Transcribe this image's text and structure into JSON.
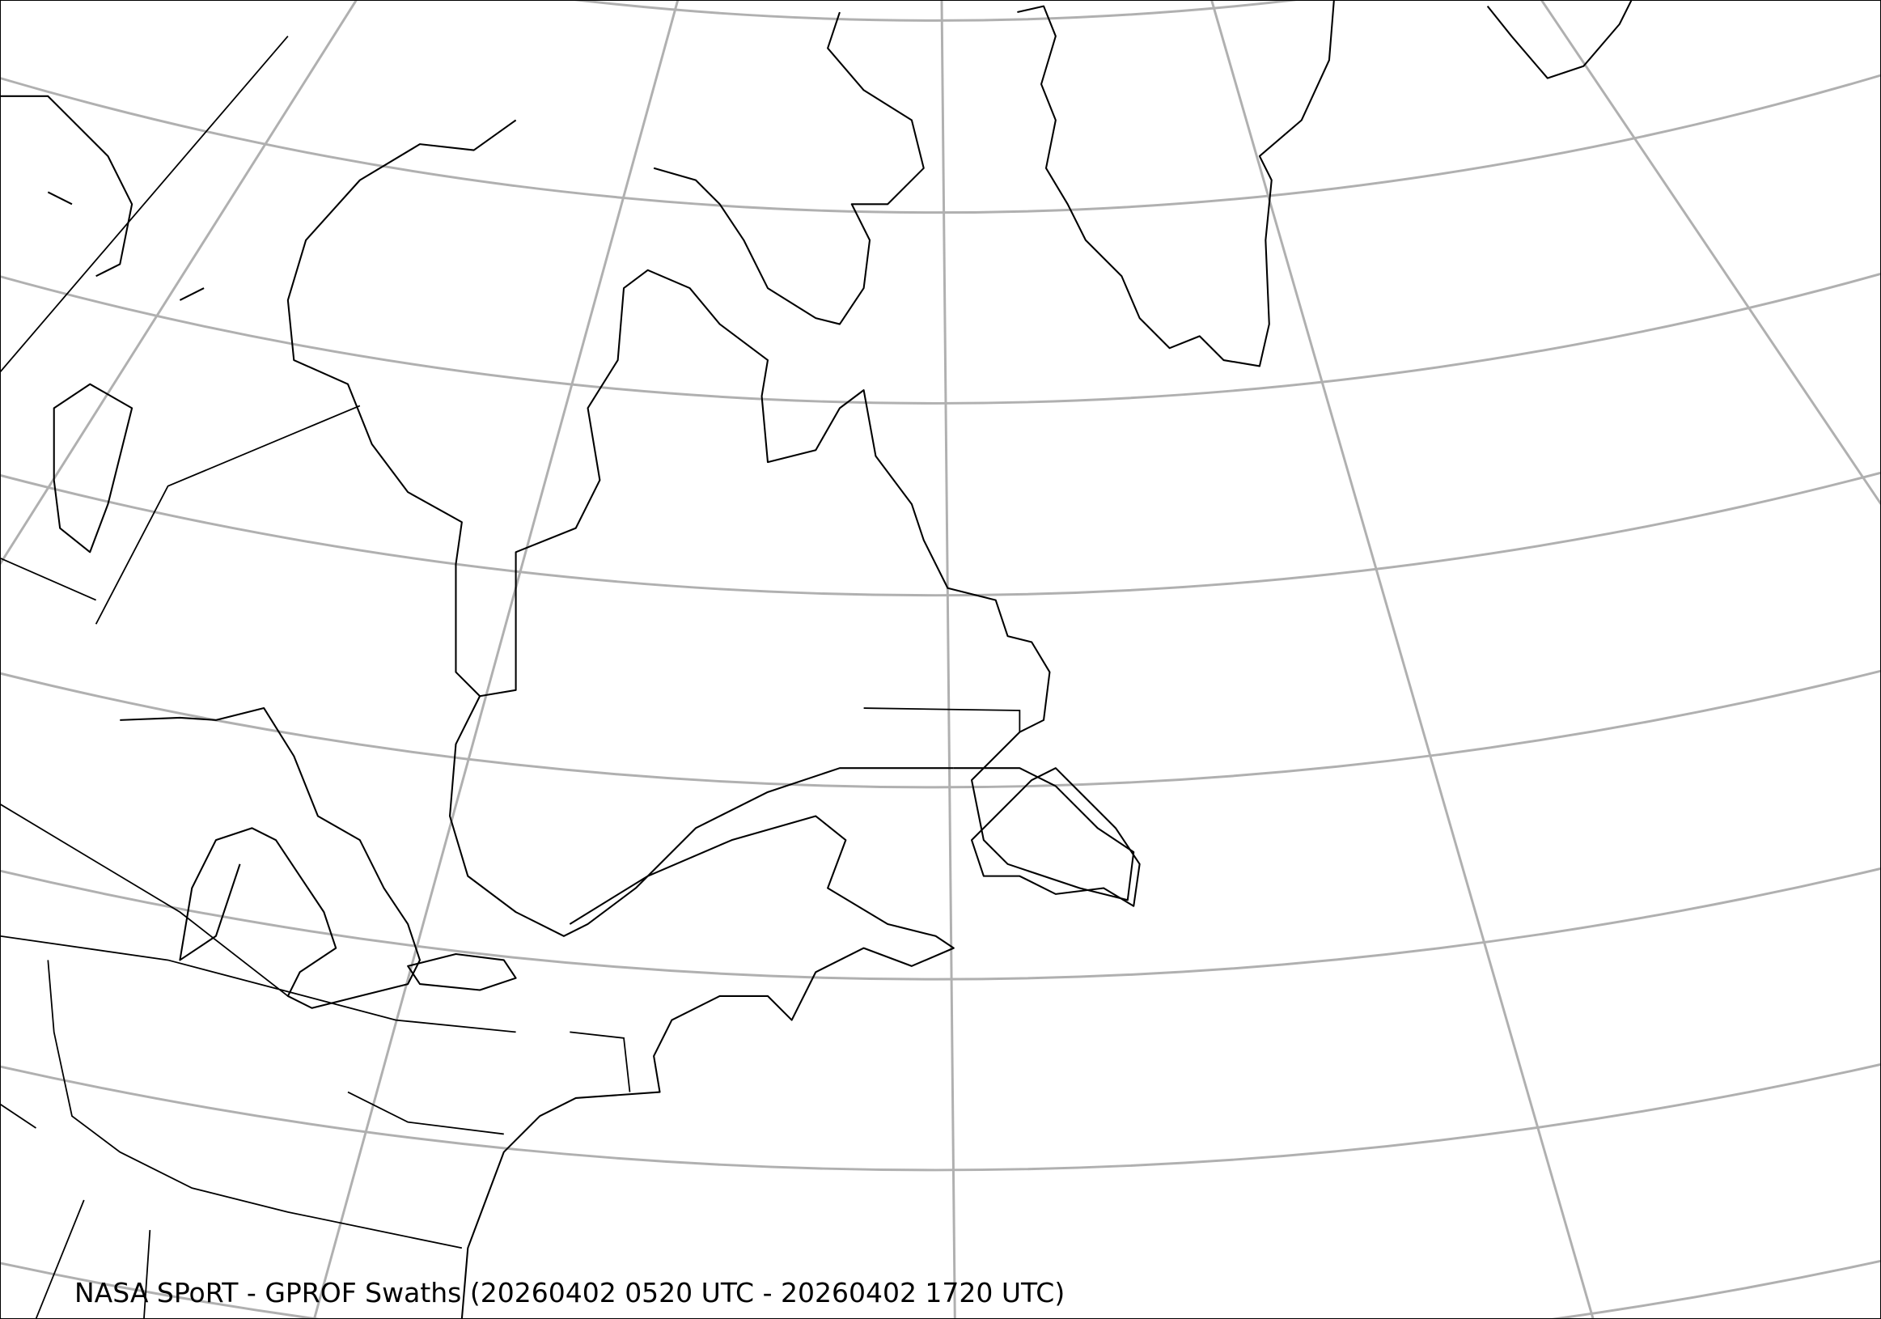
{
  "map": {
    "title": "NASA SPoRT - GPROF Swaths (20260402 0520 UTC - 20260402 1720 UTC)",
    "region": "Northeastern North America, Greenland and western North Atlantic",
    "graticule_color": "#b0b0b0",
    "coastline_color": "#000000"
  }
}
